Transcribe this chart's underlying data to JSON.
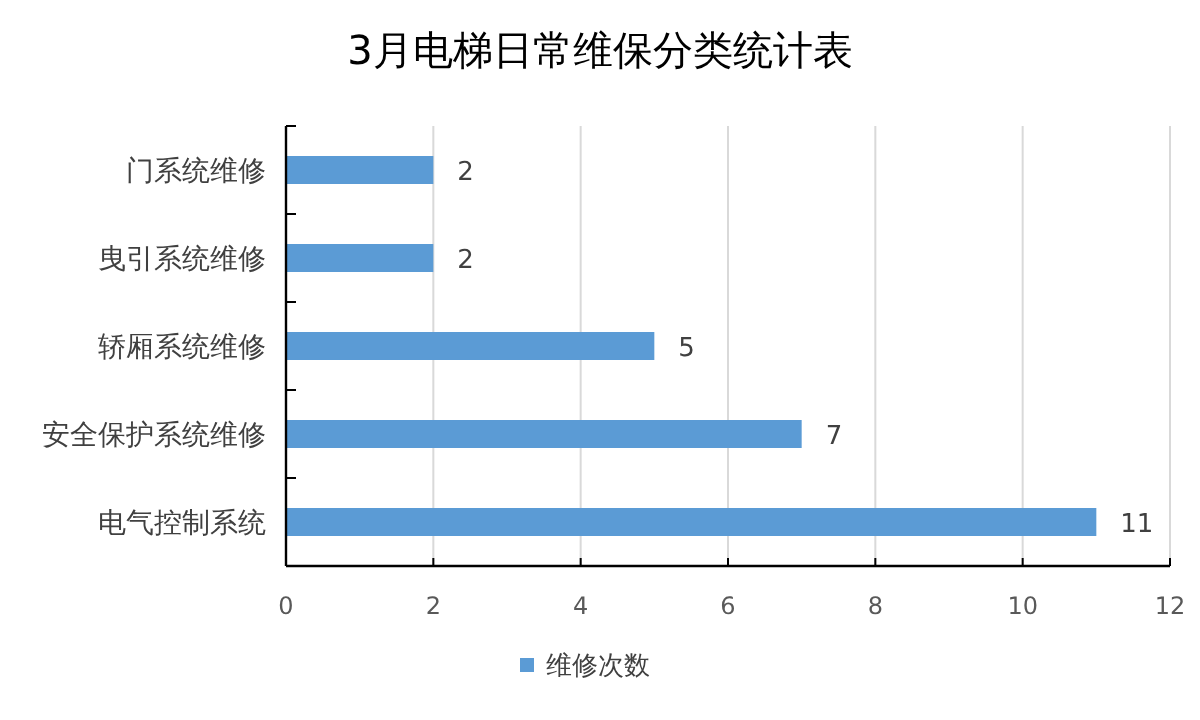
{
  "chart_data": {
    "type": "bar",
    "orientation": "horizontal",
    "title": "3月电梯日常维保分类统计表",
    "categories": [
      "门系统维修",
      "曳引系统维修",
      "轿厢系统维修",
      "安全保护系统维修",
      "电气控制系统"
    ],
    "series": [
      {
        "name": "维修次数",
        "color": "#5b9bd5",
        "values": [
          2,
          2,
          5,
          7,
          11
        ]
      }
    ],
    "xlim": [
      0,
      12
    ],
    "xticks": [
      0,
      2,
      4,
      6,
      8,
      10,
      12
    ],
    "grid": "x",
    "legend": "bottom",
    "data_labels": true
  }
}
